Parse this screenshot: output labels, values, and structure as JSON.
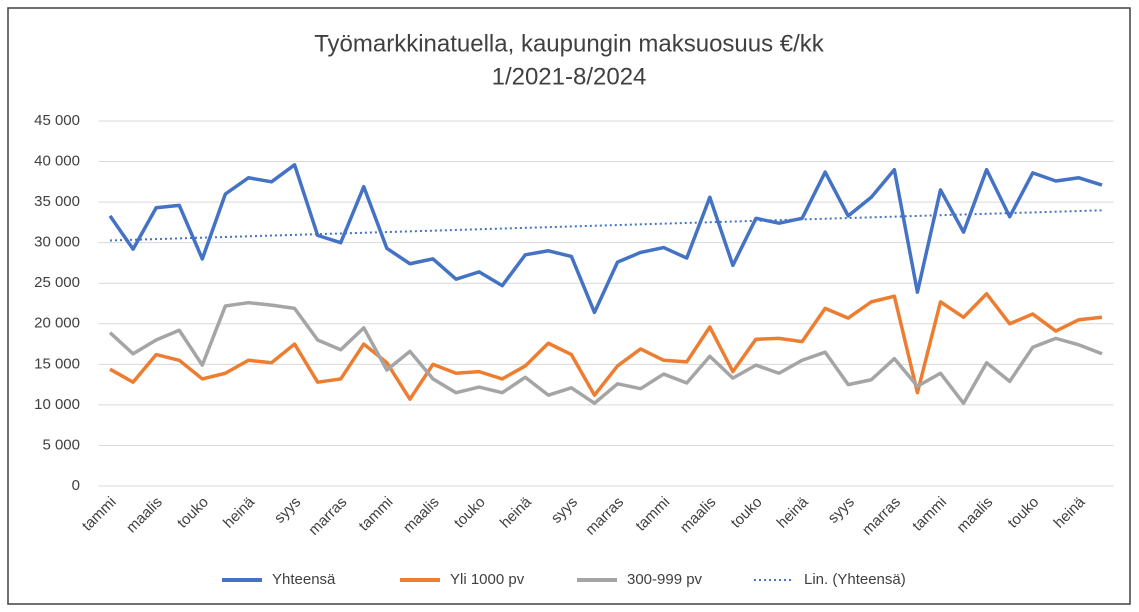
{
  "chart_data": {
    "type": "line",
    "title": "Työmarkkinatuella, kaupungin maksuosuus €/kk",
    "subtitle": "1/2021-8/2024",
    "categories": [
      "tammi",
      null,
      "maalis",
      null,
      "touko",
      null,
      "heinä",
      null,
      "syys",
      null,
      "marras",
      null,
      "tammi",
      null,
      "maalis",
      null,
      "touko",
      null,
      "heinä",
      null,
      "syys",
      null,
      "marras",
      null,
      "tammi",
      null,
      "maalis",
      null,
      "touko",
      null,
      "heinä",
      null,
      "syys",
      null,
      "marras",
      null,
      "tammi",
      null,
      "maalis",
      null,
      "touko",
      null,
      "heinä",
      null
    ],
    "series": [
      {
        "name": "Yhteensä",
        "color": "#4472c4",
        "values": [
          33300,
          29200,
          34300,
          34600,
          28000,
          36000,
          38000,
          37500,
          39600,
          30900,
          30000,
          36900,
          29300,
          27400,
          28000,
          25500,
          26400,
          24700,
          28500,
          29000,
          28300,
          21400,
          27600,
          28800,
          29400,
          28100,
          35600,
          27200,
          33000,
          32400,
          33000,
          38700,
          33300,
          35600,
          39000,
          23900,
          36500,
          31300,
          39000,
          33200,
          38600,
          37600,
          38000,
          37100
        ]
      },
      {
        "name": "Yli 1000 pv",
        "color": "#ed7d31",
        "values": [
          14400,
          12800,
          16200,
          15500,
          13200,
          13900,
          15500,
          15200,
          17500,
          12800,
          13200,
          17500,
          15200,
          10700,
          15000,
          13900,
          14100,
          13200,
          14800,
          17600,
          16200,
          11200,
          14800,
          16900,
          15500,
          15300,
          19600,
          14100,
          18100,
          18200,
          17800,
          21900,
          20700,
          22700,
          23400,
          11500,
          22700,
          20800,
          23700,
          20000,
          21200,
          19100,
          20500,
          20800
        ]
      },
      {
        "name": "300-999 pv",
        "color": "#a5a5a5",
        "values": [
          18900,
          16300,
          18000,
          19200,
          14900,
          22200,
          22600,
          22300,
          21900,
          18000,
          16800,
          19500,
          14300,
          16600,
          13200,
          11500,
          12200,
          11500,
          13400,
          11200,
          12100,
          10200,
          12600,
          12000,
          13800,
          12700,
          16000,
          13300,
          14900,
          13900,
          15500,
          16500,
          12500,
          13100,
          15700,
          12300,
          13900,
          10200,
          15200,
          12900,
          17100,
          18200,
          17400,
          16300
        ]
      }
    ],
    "trendline": {
      "name": "Lin. (Yhteensä)",
      "series": 0,
      "color": "#4472c4",
      "style": "dotted"
    },
    "ylim": [
      0,
      45000
    ],
    "yticks": [
      0,
      {
        "value": 5000,
        "label": "5 000"
      },
      {
        "value": 10000,
        "label": "10 000"
      },
      {
        "value": 15000,
        "label": "15 000"
      },
      {
        "value": 20000,
        "label": "20 000"
      },
      {
        "value": 25000,
        "label": "25 000"
      },
      {
        "value": 30000,
        "label": "30 000"
      },
      {
        "value": 35000,
        "label": "35 000"
      },
      {
        "value": 40000,
        "label": "40 000"
      },
      {
        "value": 45000,
        "label": "45 000"
      }
    ],
    "grid": true,
    "legend": "bottom"
  }
}
